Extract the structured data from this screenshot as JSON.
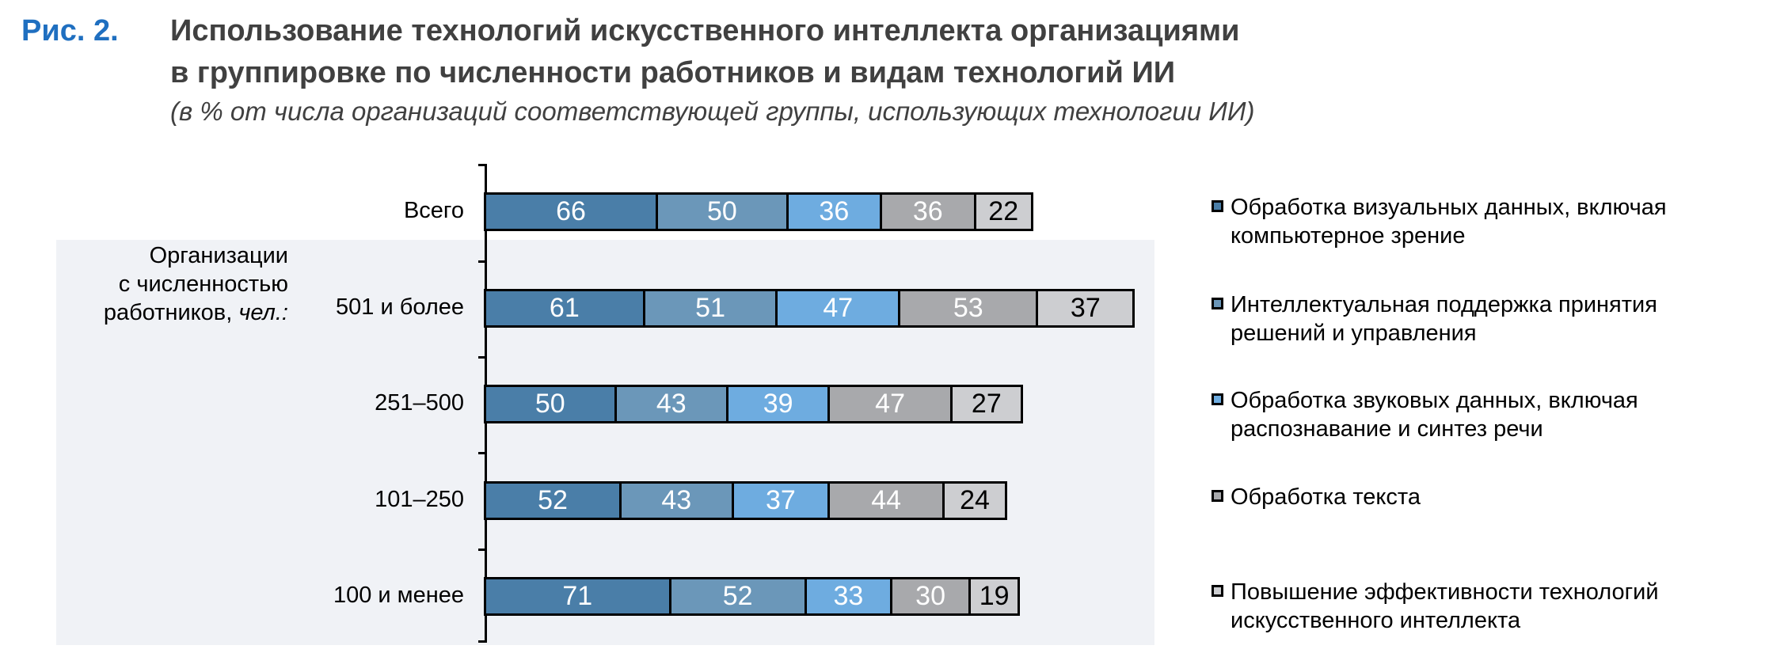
{
  "header": {
    "fig_label": "Рис. 2.",
    "title_line1": "Использование технологий искусственного интеллекта организациями",
    "title_line2": "в группировке по численности работников и видам технологий ИИ",
    "subtitle": "(в % от числа организаций соответствующей группы, использующих технологии ИИ)"
  },
  "chart_data": {
    "type": "bar",
    "orientation": "horizontal-stacked",
    "title": "Использование технологий искусственного интеллекта организациями в группировке по численности работников и видам технологий ИИ",
    "subtitle": "(в % от числа организаций соответствующей группы, использующих технологии ИИ)",
    "group_label": "Организации с численностью работников, ",
    "group_label_italic": "чел.:",
    "group_label_line1": "Организации",
    "group_label_line2": "с численностью",
    "group_label_line3": "работников, ",
    "categories": [
      "Всего",
      "501 и более",
      "251–500",
      "101–250",
      "100 и менее"
    ],
    "series": [
      {
        "name": "Обработка визуальных данных, включая компьютерное зрение",
        "name_l1": "Обработка визуальных данных, включая",
        "name_l2": "компьютерное зрение",
        "color": "#4a7ea8",
        "label_color": "#ffffff",
        "values": [
          66,
          61,
          50,
          52,
          71
        ]
      },
      {
        "name": "Интеллектуальная поддержка принятия решений и управления",
        "name_l1": "Интеллектуальная поддержка принятия",
        "name_l2": "решений и управления",
        "color": "#6b97b9",
        "label_color": "#ffffff",
        "values": [
          50,
          51,
          43,
          43,
          52
        ]
      },
      {
        "name": "Обработка звуковых данных, включая распознавание и синтез речи",
        "name_l1": "Обработка звуковых данных, включая",
        "name_l2": "распознавание и синтез речи",
        "color": "#6eace0",
        "label_color": "#ffffff",
        "values": [
          36,
          47,
          39,
          37,
          33
        ]
      },
      {
        "name": "Обработка текста",
        "name_l1": "Обработка текста",
        "name_l2": "",
        "color": "#a8a9ac",
        "label_color": "#ffffff",
        "values": [
          36,
          53,
          47,
          44,
          30
        ]
      },
      {
        "name": "Повышение эффективности технологий искусственного интеллекта",
        "name_l1": "Повышение эффективности технологий",
        "name_l2": "искусственного интеллекта",
        "color": "#cdced1",
        "label_color": "#000000",
        "values": [
          22,
          37,
          27,
          24,
          19
        ]
      }
    ],
    "legend_position": "right",
    "grid": false
  }
}
